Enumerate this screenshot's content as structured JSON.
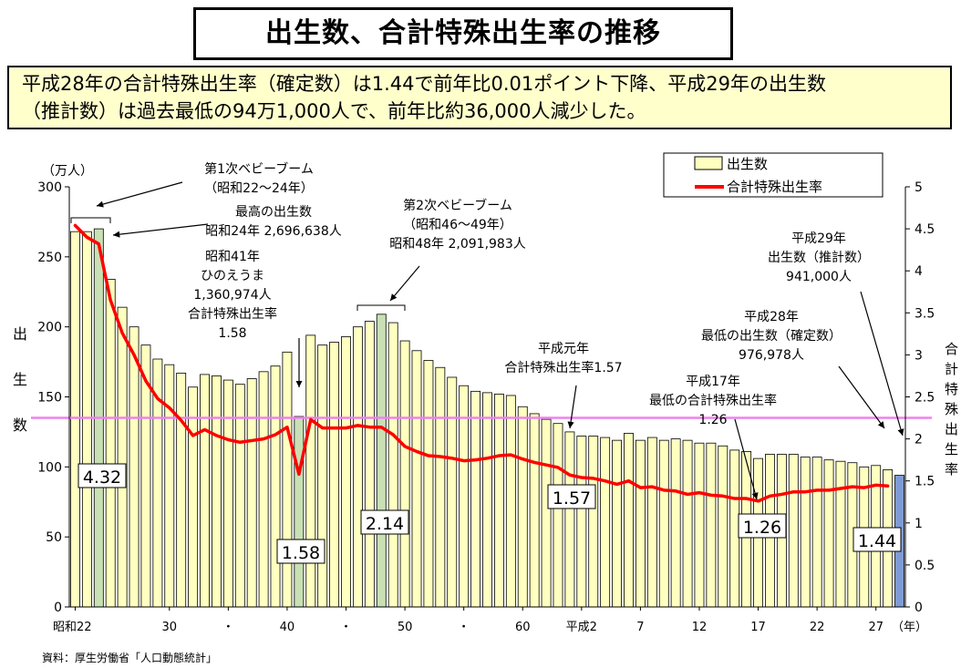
{
  "title": "出生数、合計特殊出生率の推移",
  "summary": [
    "平成28年の合計特殊出生率（確定数）は1.44で前年比0.01ポイント下降、平成29年の出生数",
    "（推計数）は過去最低の94万1,000人で、前年比約36,000人減少した。"
  ],
  "source": "資料：厚生労働省「人口動態統計」",
  "colors": {
    "bar": "#ffffc0",
    "bar_highlight": "#c8e0b4",
    "bar_last": "#7f9bd4",
    "rate_line": "#ff0000",
    "reference_line": "#ee82ee"
  },
  "chart_data": {
    "type": "bar",
    "left_axis": {
      "unit": "（万人）",
      "label": "出生数",
      "ylim": [
        0,
        300
      ],
      "ticks": [
        "0",
        "50",
        "100",
        "150",
        "200",
        "250",
        "300"
      ]
    },
    "right_axis": {
      "label": "合計特殊出生率",
      "ylim": [
        0,
        5
      ],
      "ticks": [
        "0",
        "0.5",
        "1",
        "1.5",
        "2",
        "2.5",
        "3",
        "3.5",
        "4",
        "4.5",
        "5"
      ]
    },
    "x_axis": {
      "unit": "（年）",
      "labels": [
        {
          "index": 0,
          "text": "昭和22"
        },
        {
          "index": 8,
          "text": "30"
        },
        {
          "index": 13,
          "text": "・"
        },
        {
          "index": 18,
          "text": "40"
        },
        {
          "index": 23,
          "text": "・"
        },
        {
          "index": 28,
          "text": "50"
        },
        {
          "index": 33,
          "text": "・"
        },
        {
          "index": 38,
          "text": "60"
        },
        {
          "index": 43,
          "text": "平成2"
        },
        {
          "index": 48,
          "text": "7"
        },
        {
          "index": 53,
          "text": "12"
        },
        {
          "index": 58,
          "text": "17"
        },
        {
          "index": 63,
          "text": "22"
        },
        {
          "index": 68,
          "text": "27"
        }
      ]
    },
    "series": [
      {
        "name": "出生数",
        "type": "bar",
        "values": [
          268,
          268,
          270,
          234,
          214,
          200,
          187,
          177,
          173,
          167,
          157,
          166,
          165,
          162,
          159,
          163,
          168,
          172,
          182,
          136,
          194,
          187,
          189,
          193,
          200,
          204,
          209,
          203,
          190,
          183,
          176,
          171,
          164,
          158,
          154,
          153,
          152,
          151,
          143,
          138,
          134,
          131,
          125,
          122,
          122,
          121,
          119,
          124,
          119,
          121,
          119,
          120,
          119,
          117,
          117,
          115,
          112,
          111,
          106,
          109,
          109,
          109,
          107,
          107,
          105,
          104,
          103,
          100,
          101,
          98,
          94
        ]
      },
      {
        "name": "合計特殊出生率",
        "type": "line",
        "values": [
          4.54,
          4.4,
          4.32,
          3.65,
          3.26,
          3.0,
          2.69,
          2.48,
          2.37,
          2.22,
          2.04,
          2.11,
          2.04,
          1.99,
          1.96,
          1.98,
          2.0,
          2.05,
          2.14,
          1.58,
          2.23,
          2.13,
          2.13,
          2.13,
          2.16,
          2.14,
          2.14,
          2.05,
          1.91,
          1.85,
          1.8,
          1.79,
          1.77,
          1.74,
          1.75,
          1.77,
          1.8,
          1.81,
          1.76,
          1.72,
          1.69,
          1.66,
          1.57,
          1.54,
          1.53,
          1.5,
          1.46,
          1.5,
          1.42,
          1.43,
          1.39,
          1.38,
          1.34,
          1.36,
          1.33,
          1.32,
          1.29,
          1.29,
          1.26,
          1.32,
          1.34,
          1.37,
          1.37,
          1.39,
          1.39,
          1.41,
          1.43,
          1.42,
          1.45,
          1.44
        ]
      }
    ],
    "reference_line": {
      "axis": "right",
      "value": 2.25
    },
    "highlight_bars": [
      2,
      19,
      26
    ],
    "projected_bar": 70,
    "legend": {
      "position": "top-right",
      "entries": [
        "出生数",
        "合計特殊出生率"
      ]
    },
    "value_labels": [
      {
        "text": "4.32",
        "series": "合計特殊出生率",
        "index": 2
      },
      {
        "text": "1.58",
        "series": "合計特殊出生率",
        "index": 19
      },
      {
        "text": "2.14",
        "series": "合計特殊出生率",
        "index": 26
      },
      {
        "text": "1.57",
        "series": "合計特殊出生率",
        "index": 42
      },
      {
        "text": "1.26",
        "series": "合計特殊出生率",
        "index": 58
      },
      {
        "text": "1.44",
        "series": "合計特殊出生率",
        "index": 69
      }
    ],
    "annotations": [
      {
        "lines": [
          "第1次ベビーブーム",
          "（昭和22～24年）"
        ]
      },
      {
        "lines": [
          "最高の出生数",
          "昭和24年 2,696,638人"
        ]
      },
      {
        "lines": [
          "昭和41年",
          "ひのえうま",
          "1,360,974人",
          "合計特殊出生率",
          "1.58"
        ]
      },
      {
        "lines": [
          "第2次ベビーブーム",
          "（昭和46～49年）",
          "昭和48年 2,091,983人"
        ]
      },
      {
        "lines": [
          "平成元年",
          "合計特殊出生率1.57"
        ]
      },
      {
        "lines": [
          "平成17年",
          "最低の合計特殊出生率",
          "1.26"
        ]
      },
      {
        "lines": [
          "平成28年",
          "最低の出生数（確定数）",
          "976,978人"
        ]
      },
      {
        "lines": [
          "平成29年",
          "出生数（推計数）",
          "941,000人"
        ]
      }
    ]
  }
}
